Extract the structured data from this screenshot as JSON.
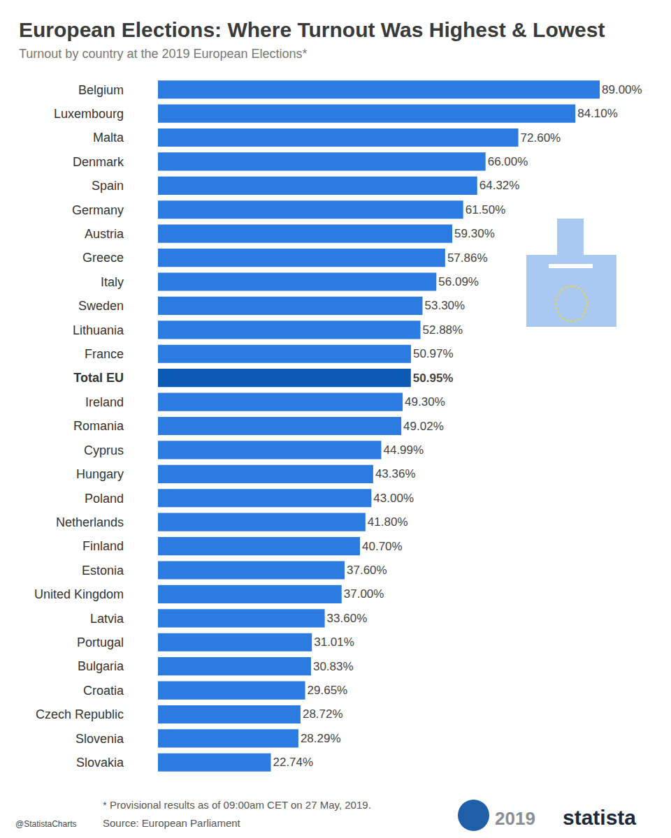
{
  "chart_data": {
    "type": "bar",
    "orientation": "horizontal",
    "title": "European Elections: Where Turnout Was Highest & Lowest",
    "subtitle": "Turnout by country at the 2019 European Elections*",
    "categories": [
      "Belgium",
      "Luxembourg",
      "Malta",
      "Denmark",
      "Spain",
      "Germany",
      "Austria",
      "Greece",
      "Italy",
      "Sweden",
      "Lithuania",
      "France",
      "Total EU",
      "Ireland",
      "Romania",
      "Cyprus",
      "Hungary",
      "Poland",
      "Netherlands",
      "Finland",
      "Estonia",
      "United Kingdom",
      "Latvia",
      "Portugal",
      "Bulgaria",
      "Croatia",
      "Czech Republic",
      "Slovenia",
      "Slovakia"
    ],
    "values": [
      89.0,
      84.1,
      72.6,
      66.0,
      64.32,
      61.5,
      59.3,
      57.86,
      56.09,
      53.3,
      52.88,
      50.97,
      50.95,
      49.3,
      49.02,
      44.99,
      43.36,
      43.0,
      41.8,
      40.7,
      37.6,
      37.0,
      33.6,
      31.01,
      30.83,
      29.65,
      28.72,
      28.29,
      22.74
    ],
    "value_labels": [
      "89.00%",
      "84.10%",
      "72.60%",
      "66.00%",
      "64.32%",
      "61.50%",
      "59.30%",
      "57.86%",
      "56.09%",
      "53.30%",
      "52.88%",
      "50.97%",
      "50.95%",
      "49.30%",
      "49.02%",
      "44.99%",
      "43.36%",
      "43.00%",
      "41.80%",
      "40.70%",
      "37.60%",
      "37.00%",
      "33.60%",
      "31.01%",
      "30.83%",
      "29.65%",
      "28.72%",
      "28.29%",
      "22.74%"
    ],
    "colors": [
      "#2b7be0",
      "#2b7be0",
      "#2b7be0",
      "#2b7be0",
      "#2b7be0",
      "#2b7be0",
      "#2b7be0",
      "#2b7be0",
      "#2b7be0",
      "#2b7be0",
      "#2b7be0",
      "#2b7be0",
      "#0b5bb5",
      "#2b7be0",
      "#2b7be0",
      "#2b7be0",
      "#2b7be0",
      "#2b7be0",
      "#2b7be0",
      "#2b7be0",
      "#2b7be0",
      "#2b7be0",
      "#2b7be0",
      "#2b7be0",
      "#2b7be0",
      "#2b7be0",
      "#2b7be0",
      "#2b7be0",
      "#2b7be0"
    ],
    "xlim": [
      0,
      89
    ],
    "xticks": [],
    "grid": false,
    "data_labels": true,
    "tick_labels": "y",
    "annotations": [
      "* Provisional results as of 09:00am CET on 27 May, 2019.",
      "Source: European Parliament",
      "@StatistaCharts",
      "2019",
      "statista"
    ]
  }
}
